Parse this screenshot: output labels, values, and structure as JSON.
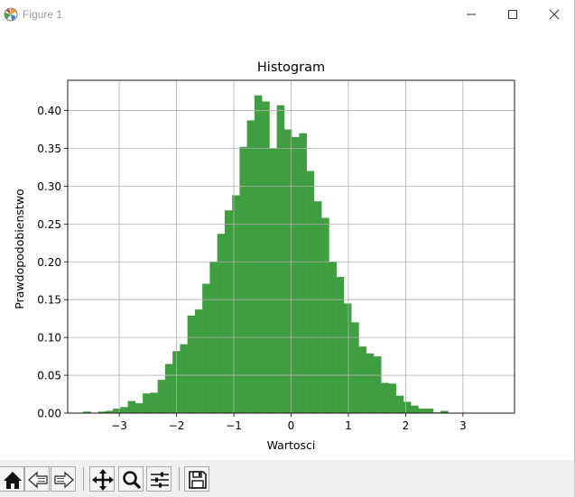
{
  "window": {
    "title": "Figure 1"
  },
  "toolbar": {
    "buttons": [
      "home-icon",
      "back-icon",
      "forward-icon",
      "pan-icon",
      "zoom-icon",
      "configure-subplots-icon",
      "save-icon"
    ]
  },
  "colors": {
    "bar": "#3f9e3f",
    "grid": "#b0b0b0",
    "axis": "#000000"
  },
  "chart_data": {
    "type": "bar",
    "title": "Histogram",
    "xlabel": "Wartosci",
    "ylabel": "Prawdopodobienstwo",
    "xlim": [
      -3.9,
      3.9
    ],
    "ylim": [
      0,
      0.44
    ],
    "xticks": [
      -3,
      -2,
      -1,
      0,
      1,
      2,
      3
    ],
    "xtick_labels": [
      "−3",
      "−2",
      "−1",
      "0",
      "1",
      "2",
      "3"
    ],
    "yticks": [
      0.0,
      0.05,
      0.1,
      0.15,
      0.2,
      0.25,
      0.3,
      0.35,
      0.4
    ],
    "ytick_labels": [
      "0.00",
      "0.05",
      "0.10",
      "0.15",
      "0.20",
      "0.25",
      "0.30",
      "0.35",
      "0.40"
    ],
    "grid": true,
    "bin_width": 0.13,
    "bin_start": -3.63,
    "values": [
      0.002,
      0.0,
      0.002,
      0.003,
      0.006,
      0.008,
      0.016,
      0.013,
      0.026,
      0.027,
      0.044,
      0.065,
      0.082,
      0.091,
      0.129,
      0.137,
      0.171,
      0.2,
      0.237,
      0.268,
      0.288,
      0.352,
      0.387,
      0.42,
      0.412,
      0.35,
      0.407,
      0.375,
      0.365,
      0.37,
      0.32,
      0.28,
      0.258,
      0.2,
      0.18,
      0.145,
      0.12,
      0.088,
      0.079,
      0.075,
      0.04,
      0.039,
      0.023,
      0.015,
      0.01,
      0.006,
      0.006,
      0.001,
      0.003
    ]
  }
}
